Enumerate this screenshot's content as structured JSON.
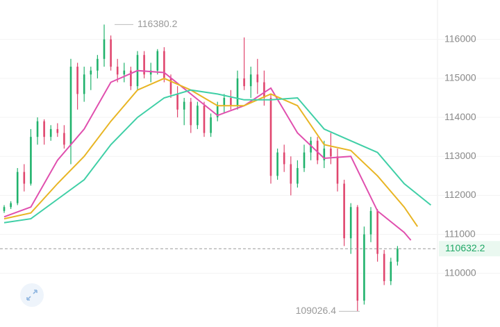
{
  "chart_data": {
    "type": "candlestick",
    "candles": {
      "open": [
        111600,
        111700,
        111800,
        112600,
        112300,
        113500,
        113900,
        113500,
        113700,
        113600,
        113300,
        115300,
        114600,
        115100,
        115200,
        115500,
        116000,
        115300,
        115100,
        115200,
        114800,
        115600,
        115100,
        115200,
        115700,
        115000,
        114600,
        114200,
        114400,
        113800,
        114300,
        113600,
        114000,
        114300,
        114500,
        114300,
        115000,
        114800,
        115100,
        114900,
        114500,
        112500,
        113100,
        112800,
        112300,
        112700,
        113100,
        113400,
        112900,
        113200,
        113000,
        112300,
        110900,
        111700,
        109300,
        111000,
        111600,
        110500,
        109800,
        110300
      ],
      "high": [
        111750,
        111850,
        112700,
        112800,
        113700,
        114000,
        113950,
        113800,
        113850,
        113800,
        115500,
        115400,
        115300,
        115300,
        115600,
        116380.2,
        116100,
        115500,
        115400,
        115300,
        115700,
        115700,
        115400,
        115750,
        115800,
        115100,
        114800,
        114500,
        114500,
        114400,
        114400,
        114100,
        114400,
        114600,
        114700,
        115200,
        116050,
        115300,
        115500,
        115200,
        114600,
        113200,
        113300,
        113000,
        112900,
        113300,
        113500,
        113500,
        113400,
        113600,
        113200,
        112400,
        111800,
        111750,
        111200,
        111700,
        111650,
        110600,
        110400,
        110700
      ],
      "low": [
        111550,
        111650,
        111750,
        112100,
        112250,
        113300,
        113300,
        113400,
        113500,
        113200,
        112800,
        114200,
        114400,
        114700,
        115000,
        115300,
        115200,
        114900,
        114900,
        114700,
        114700,
        115000,
        114900,
        115100,
        114900,
        114500,
        114000,
        113800,
        113600,
        113700,
        113500,
        113500,
        113900,
        114100,
        114200,
        114200,
        114700,
        114500,
        114600,
        114300,
        112300,
        112400,
        112600,
        112000,
        112200,
        112600,
        112900,
        112800,
        112700,
        112800,
        112100,
        110700,
        110500,
        109026.4,
        109200,
        110800,
        110300,
        109700,
        109700,
        110200
      ],
      "close": [
        111700,
        111800,
        112600,
        112300,
        113500,
        113900,
        113500,
        113700,
        113600,
        113300,
        115300,
        114600,
        115100,
        115200,
        115500,
        116000,
        115300,
        115100,
        115200,
        114800,
        115600,
        115100,
        115200,
        115700,
        115000,
        114600,
        114200,
        114400,
        113800,
        114300,
        113600,
        114000,
        114300,
        114500,
        114300,
        115000,
        114800,
        115100,
        114900,
        114500,
        112500,
        113100,
        112800,
        112300,
        112700,
        113100,
        113400,
        112900,
        113200,
        113000,
        112300,
        110900,
        111700,
        109300,
        111000,
        111600,
        110500,
        109800,
        110300,
        110632.2
      ]
    },
    "up_color": "#20b26c",
    "down_color": "#e0466e",
    "lines": [
      {
        "color": "#e04fae",
        "x": [
          0,
          4,
          8,
          12,
          16,
          20,
          24,
          28,
          32,
          36,
          40,
          44,
          48,
          52,
          56,
          60,
          61
        ],
        "values": [
          111450,
          111700,
          112900,
          113700,
          114900,
          115200,
          115150,
          114600,
          114050,
          114300,
          114750,
          113600,
          112950,
          113000,
          111600,
          111050,
          110850
        ]
      },
      {
        "color": "#e8b524",
        "x": [
          0,
          4,
          8,
          12,
          16,
          20,
          24,
          28,
          32,
          36,
          40,
          44,
          48,
          52,
          56,
          60,
          62
        ],
        "values": [
          111400,
          111550,
          112300,
          113000,
          113900,
          114700,
          115000,
          114700,
          114300,
          114300,
          114600,
          114300,
          113300,
          113150,
          112500,
          111700,
          111200
        ]
      },
      {
        "color": "#3fcfa6",
        "x": [
          0,
          4,
          8,
          12,
          16,
          20,
          24,
          28,
          32,
          36,
          40,
          44,
          48,
          52,
          56,
          60,
          64
        ],
        "values": [
          111300,
          111400,
          111900,
          112400,
          113300,
          114000,
          114500,
          114700,
          114600,
          114450,
          114450,
          114500,
          113700,
          113400,
          113100,
          112300,
          111750
        ]
      }
    ],
    "xlim": [
      -0.625,
      65
    ],
    "ylim": [
      108820,
      117010
    ],
    "yticks": [
      110000,
      111000,
      112000,
      113000,
      114000,
      115000,
      116000
    ],
    "grid": true,
    "high_label": 116380.2,
    "low_label": 109026.4,
    "last_price": 110632.2
  }
}
